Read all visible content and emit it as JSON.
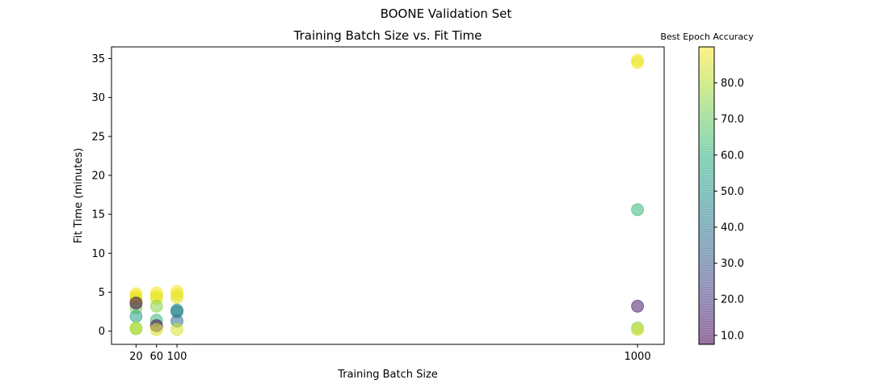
{
  "chart_data": {
    "type": "scatter",
    "suptitle": "BOONE Validation Set",
    "title": "Training Batch Size vs. Fit Time",
    "xlabel": "Training Batch Size",
    "ylabel": "Fit Time (minutes)",
    "xlim": [
      -28,
      1052
    ],
    "ylim": [
      -1.7,
      36.5
    ],
    "xticks": [
      20,
      60,
      100,
      1000
    ],
    "yticks": [
      0,
      5,
      10,
      15,
      20,
      25,
      30,
      35
    ],
    "grid": false,
    "colormap": "viridis",
    "marker_alpha": 0.55,
    "colorbar": {
      "label": "Best Epoch Accuracy",
      "range": [
        7.5,
        90
      ],
      "ticks": [
        10.0,
        20.0,
        30.0,
        40.0,
        50.0,
        60.0,
        70.0,
        80.0
      ]
    },
    "points": [
      {
        "x": 20,
        "y": 4.8,
        "c": 89
      },
      {
        "x": 20,
        "y": 4.5,
        "c": 88
      },
      {
        "x": 20,
        "y": 4.2,
        "c": 87
      },
      {
        "x": 20,
        "y": 3.8,
        "c": 84
      },
      {
        "x": 20,
        "y": 3.0,
        "c": 74
      },
      {
        "x": 20,
        "y": 3.6,
        "c": 8
      },
      {
        "x": 20,
        "y": 1.9,
        "c": 55
      },
      {
        "x": 20,
        "y": 0.4,
        "c": 82
      },
      {
        "x": 20,
        "y": 0.3,
        "c": 78
      },
      {
        "x": 60,
        "y": 4.9,
        "c": 89
      },
      {
        "x": 60,
        "y": 4.5,
        "c": 88
      },
      {
        "x": 60,
        "y": 4.2,
        "c": 87
      },
      {
        "x": 60,
        "y": 3.2,
        "c": 75
      },
      {
        "x": 60,
        "y": 1.4,
        "c": 63
      },
      {
        "x": 60,
        "y": 0.7,
        "c": 8
      },
      {
        "x": 60,
        "y": 0.2,
        "c": 85
      },
      {
        "x": 100,
        "y": 5.1,
        "c": 89
      },
      {
        "x": 100,
        "y": 4.7,
        "c": 88
      },
      {
        "x": 100,
        "y": 4.3,
        "c": 87
      },
      {
        "x": 100,
        "y": 2.7,
        "c": 48
      },
      {
        "x": 100,
        "y": 2.5,
        "c": 42
      },
      {
        "x": 100,
        "y": 1.3,
        "c": 38
      },
      {
        "x": 100,
        "y": 0.2,
        "c": 85
      },
      {
        "x": 1000,
        "y": 34.8,
        "c": 89
      },
      {
        "x": 1000,
        "y": 34.5,
        "c": 88
      },
      {
        "x": 1000,
        "y": 15.6,
        "c": 62
      },
      {
        "x": 1000,
        "y": 3.2,
        "c": 14
      },
      {
        "x": 1000,
        "y": 0.4,
        "c": 72
      },
      {
        "x": 1000,
        "y": 0.2,
        "c": 85
      }
    ]
  }
}
